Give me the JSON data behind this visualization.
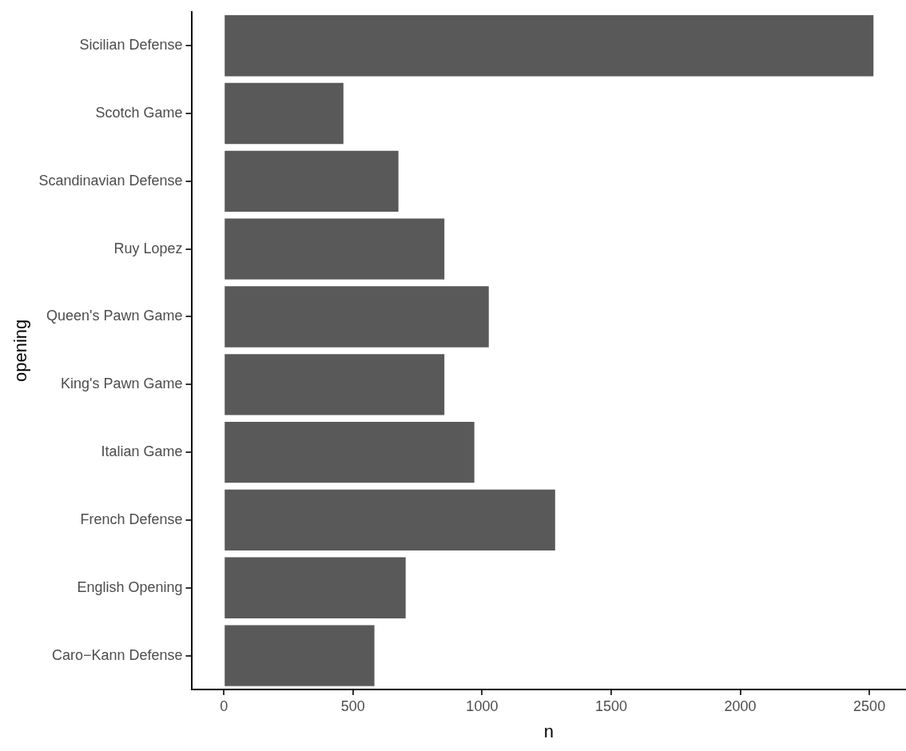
{
  "chart_data": {
    "type": "bar",
    "orientation": "horizontal",
    "xlabel": "n",
    "ylabel": "opening",
    "categories": [
      "Sicilian Defense",
      "Scotch Game",
      "Scandinavian Defense",
      "Ruy Lopez",
      "Queen's Pawn Game",
      "King's Pawn Game",
      "Italian Game",
      "French Defense",
      "English Opening",
      "Caro−Kann Defense"
    ],
    "values": [
      2516,
      463,
      676,
      854,
      1026,
      854,
      970,
      1283,
      704,
      583
    ],
    "color": "#595959",
    "xlim": [
      -126,
      2642
    ],
    "xticks": [
      0,
      500,
      1000,
      1500,
      2000,
      2500
    ],
    "grid": false,
    "legend": false
  }
}
